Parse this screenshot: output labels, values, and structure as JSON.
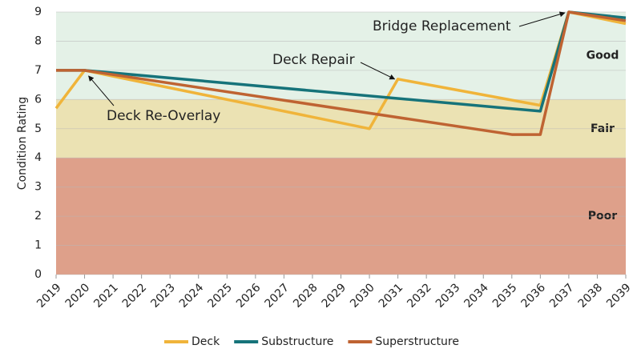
{
  "chart_data": {
    "type": "line",
    "y_label": "Condition Rating",
    "xlim": [
      2019,
      2039
    ],
    "xticks": [
      2019,
      2020,
      2021,
      2022,
      2023,
      2024,
      2025,
      2026,
      2027,
      2028,
      2029,
      2030,
      2031,
      2032,
      2033,
      2034,
      2035,
      2036,
      2037,
      2038,
      2039
    ],
    "ylim": [
      0,
      9
    ],
    "yticks": [
      0,
      1,
      2,
      3,
      4,
      5,
      6,
      7,
      8,
      9
    ],
    "grid": true,
    "legend": "bottom",
    "bands": [
      {
        "label": "Good",
        "from": 6,
        "to": 9,
        "color": "#e4f1e7"
      },
      {
        "label": "Fair",
        "from": 4,
        "to": 6,
        "color": "#ebe2b3"
      },
      {
        "label": "Poor",
        "from": 0,
        "to": 4,
        "color": "#dea08a"
      }
    ],
    "series": [
      {
        "name": "Deck",
        "color": "#f0b43a",
        "x": [
          2019,
          2020,
          2030,
          2031,
          2036,
          2037,
          2039
        ],
        "values": [
          5.7,
          7.0,
          5.0,
          6.7,
          5.8,
          9.0,
          8.6
        ]
      },
      {
        "name": "Substructure",
        "color": "#16737a",
        "x": [
          2019,
          2020,
          2036,
          2037,
          2039
        ],
        "values": [
          7.0,
          7.0,
          5.6,
          9.0,
          8.8
        ]
      },
      {
        "name": "Superstructure",
        "color": "#bf6332",
        "x": [
          2019,
          2020,
          2035,
          2036,
          2037,
          2039
        ],
        "values": [
          7.0,
          7.0,
          4.8,
          4.8,
          9.0,
          8.7
        ]
      }
    ],
    "annotations": [
      {
        "text": "Deck Re-Overlay",
        "x": 2020,
        "y": 7.0
      },
      {
        "text": "Deck Repair",
        "x": 2031,
        "y": 6.7
      },
      {
        "text": "Bridge Replacement",
        "x": 2037,
        "y": 9.0
      }
    ]
  }
}
